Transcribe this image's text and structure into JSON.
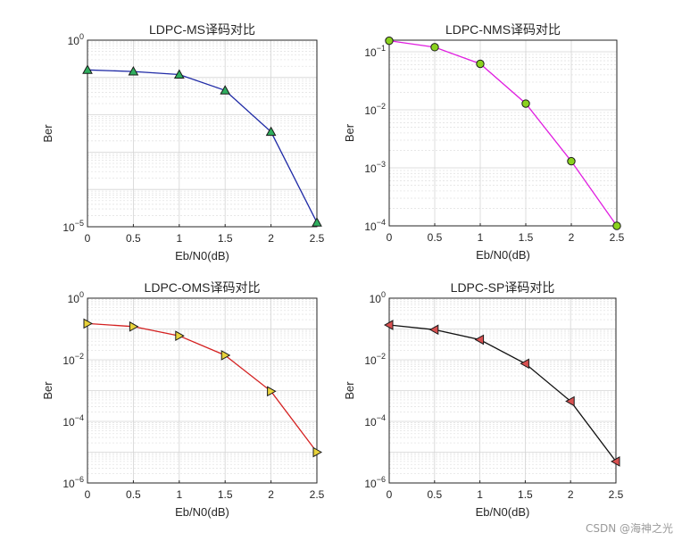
{
  "watermark": "CSDN @海神之光",
  "chart_data": [
    {
      "type": "line",
      "scale": "log",
      "title": "LDPC-MS译码对比",
      "xlabel": "Eb/N0(dB)",
      "ylabel": "Ber",
      "xlim": [
        0,
        2.5
      ],
      "ylim_exp": [
        -5,
        0
      ],
      "ytick_exps": [
        -5,
        0
      ],
      "xticks": [
        "0",
        "0.5",
        "1",
        "1.5",
        "2",
        "2.5"
      ],
      "line_color": "#1f2aa6",
      "marker": "triangle-up",
      "marker_color": "#2fae5e",
      "x": [
        0,
        0.5,
        1,
        1.5,
        2,
        2.5
      ],
      "y": [
        0.16,
        0.145,
        0.12,
        0.045,
        0.0035,
        1.3e-05
      ]
    },
    {
      "type": "line",
      "scale": "log",
      "title": "LDPC-NMS译码对比",
      "xlabel": "Eb/N0(dB)",
      "ylabel": "Ber",
      "xlim": [
        0,
        2.5
      ],
      "ylim_exp": [
        -4,
        -0.8
      ],
      "ytick_exps": [
        -4,
        -3,
        -2,
        -1
      ],
      "xticks": [
        "0",
        "0.5",
        "1",
        "1.5",
        "2",
        "2.5"
      ],
      "line_color": "#e01ee0",
      "marker": "circle",
      "marker_color": "#8ad21e",
      "x": [
        0,
        0.5,
        1,
        1.5,
        2,
        2.5
      ],
      "y": [
        0.155,
        0.12,
        0.062,
        0.0128,
        0.0013,
        0.0001
      ]
    },
    {
      "type": "line",
      "scale": "log",
      "title": "LDPC-OMS译码对比",
      "xlabel": "Eb/N0(dB)",
      "ylabel": "Ber",
      "xlim": [
        0,
        2.5
      ],
      "ylim_exp": [
        -6,
        0
      ],
      "ytick_exps": [
        -6,
        -4,
        -2,
        0
      ],
      "xticks": [
        "0",
        "0.5",
        "1",
        "1.5",
        "2",
        "2.5"
      ],
      "line_color": "#d42020",
      "marker": "triangle-right",
      "marker_color": "#e8d23a",
      "x": [
        0,
        0.5,
        1,
        1.5,
        2,
        2.5
      ],
      "y": [
        0.15,
        0.12,
        0.06,
        0.014,
        0.00095,
        1e-05
      ]
    },
    {
      "type": "line",
      "scale": "log",
      "title": "LDPC-SP译码对比",
      "xlabel": "Eb/N0(dB)",
      "ylabel": "Ber",
      "xlim": [
        0,
        2.5
      ],
      "ylim_exp": [
        -6,
        0
      ],
      "ytick_exps": [
        -6,
        -4,
        -2,
        0
      ],
      "xticks": [
        "0",
        "0.5",
        "1",
        "1.5",
        "2",
        "2.5"
      ],
      "line_color": "#111111",
      "marker": "triangle-left",
      "marker_color": "#d85050",
      "x": [
        0,
        0.5,
        1,
        1.5,
        2,
        2.5
      ],
      "y": [
        0.135,
        0.095,
        0.045,
        0.0075,
        0.00045,
        5e-06
      ]
    }
  ]
}
